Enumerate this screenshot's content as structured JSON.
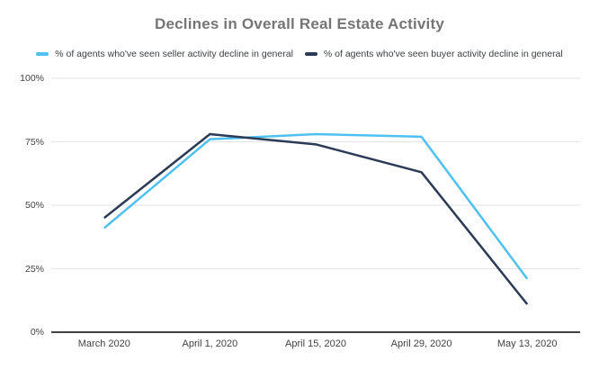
{
  "title": "Declines in Overall Real Estate Activity",
  "colors": {
    "seller_line": "#4fc1f0",
    "buyer_line": "#2b3a55",
    "gridline": "#e3e3e3",
    "axis_baseline": "#424242",
    "title_text": "#757575",
    "label_text": "#424242"
  },
  "chart_data": {
    "type": "line",
    "title": "Declines in Overall Real Estate Activity",
    "xlabel": "",
    "ylabel": "",
    "categories": [
      "March 2020",
      "April 1, 2020",
      "April 15, 2020",
      "April 29, 2020",
      "May 13, 2020"
    ],
    "series": [
      {
        "name": "% of agents who've seen seller activity decline in general",
        "color": "#4fc1f0",
        "values": [
          41,
          76,
          78,
          77,
          21
        ]
      },
      {
        "name": "% of agents who've seen buyer activity decline in general",
        "color": "#2b3a55",
        "values": [
          45,
          78,
          74,
          63,
          11
        ]
      }
    ],
    "ylim": [
      0,
      100
    ],
    "yticks": [
      {
        "value": 0,
        "label": "0%"
      },
      {
        "value": 25,
        "label": "25%"
      },
      {
        "value": 50,
        "label": "50%"
      },
      {
        "value": 75,
        "label": "75%"
      },
      {
        "value": 100,
        "label": "100%"
      }
    ],
    "grid": true,
    "legend_position": "top"
  }
}
